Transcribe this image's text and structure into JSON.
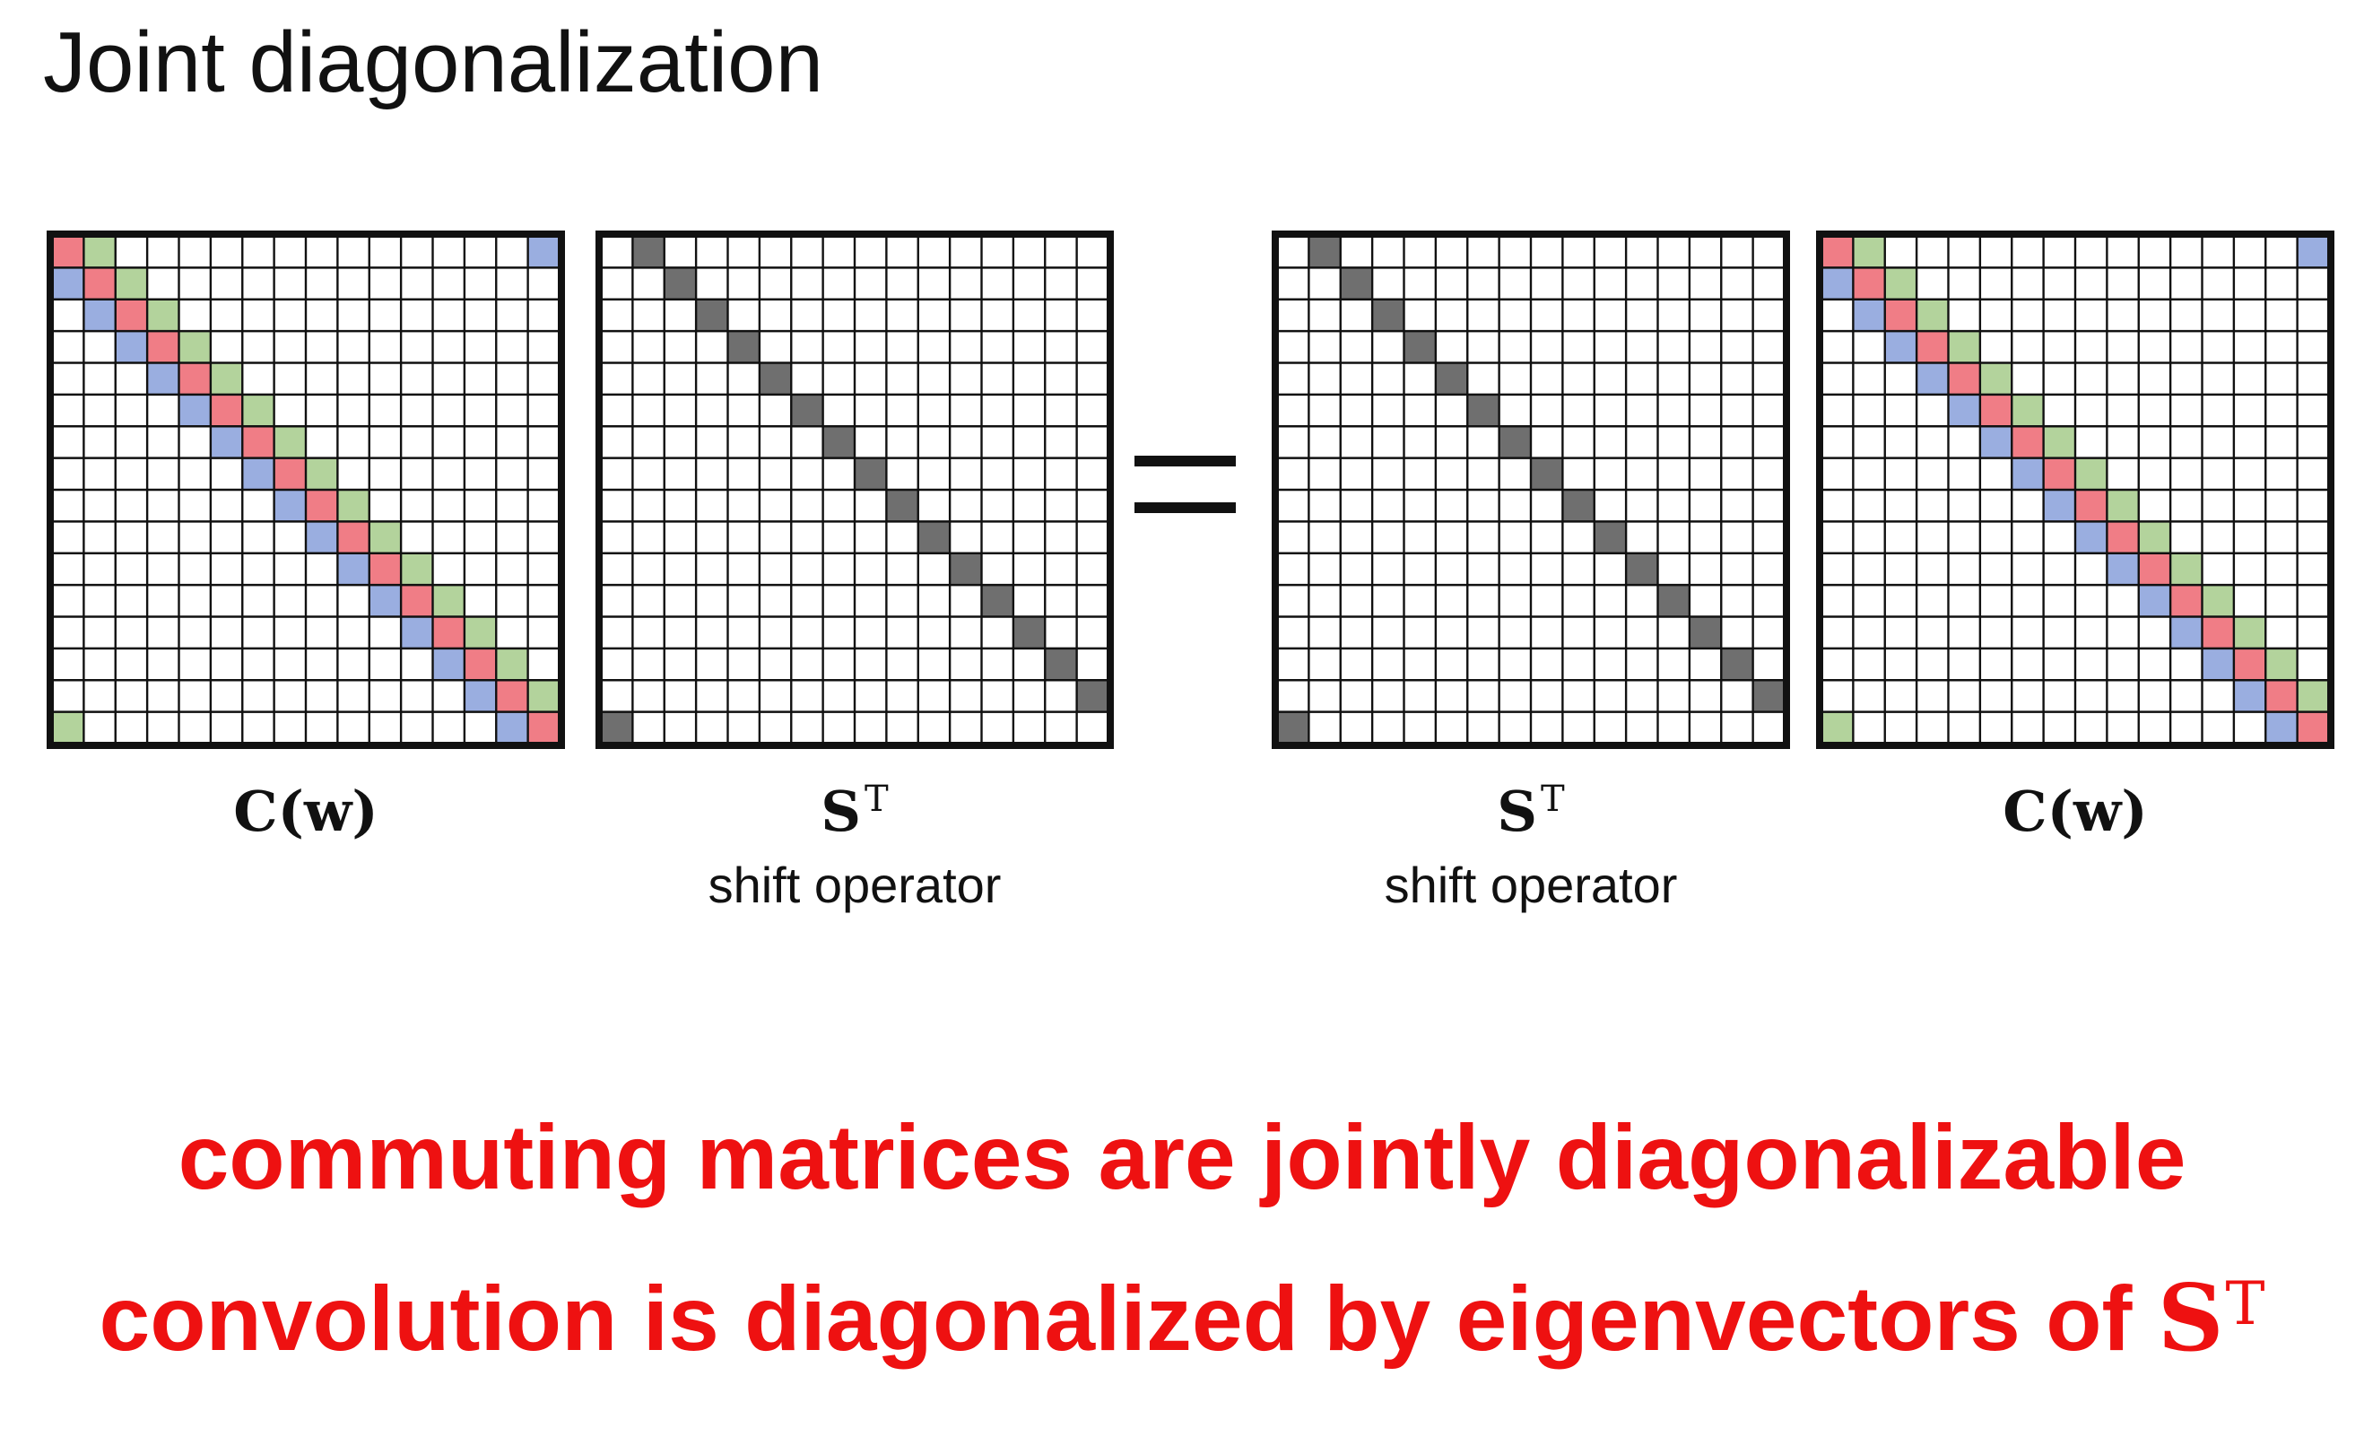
{
  "title": "Joint diagonalization",
  "matrix_size": 16,
  "colors": {
    "red": "#f07d86",
    "green": "#b3d39c",
    "blue": "#9aaee0",
    "gray": "#6f6f6f",
    "grid": "#111111",
    "statement": "#ee1111"
  },
  "panels": [
    {
      "kind": "circulant",
      "label_symbol": "C(w)",
      "label_sup": "",
      "caption": ""
    },
    {
      "kind": "shift",
      "label_symbol": "S",
      "label_sup": "T",
      "caption": "shift operator"
    },
    {
      "kind": "shift",
      "label_symbol": "S",
      "label_sup": "T",
      "caption": "shift operator"
    },
    {
      "kind": "circulant",
      "label_symbol": "C(w)",
      "label_sup": "",
      "caption": ""
    }
  ],
  "equation_sign": "=",
  "statements": [
    {
      "text": "commuting matrices are jointly diagonalizable"
    },
    {
      "text": "convolution is diagonalized by eigenvectors of ",
      "symbol": "S",
      "symbol_sup": "T"
    }
  ]
}
